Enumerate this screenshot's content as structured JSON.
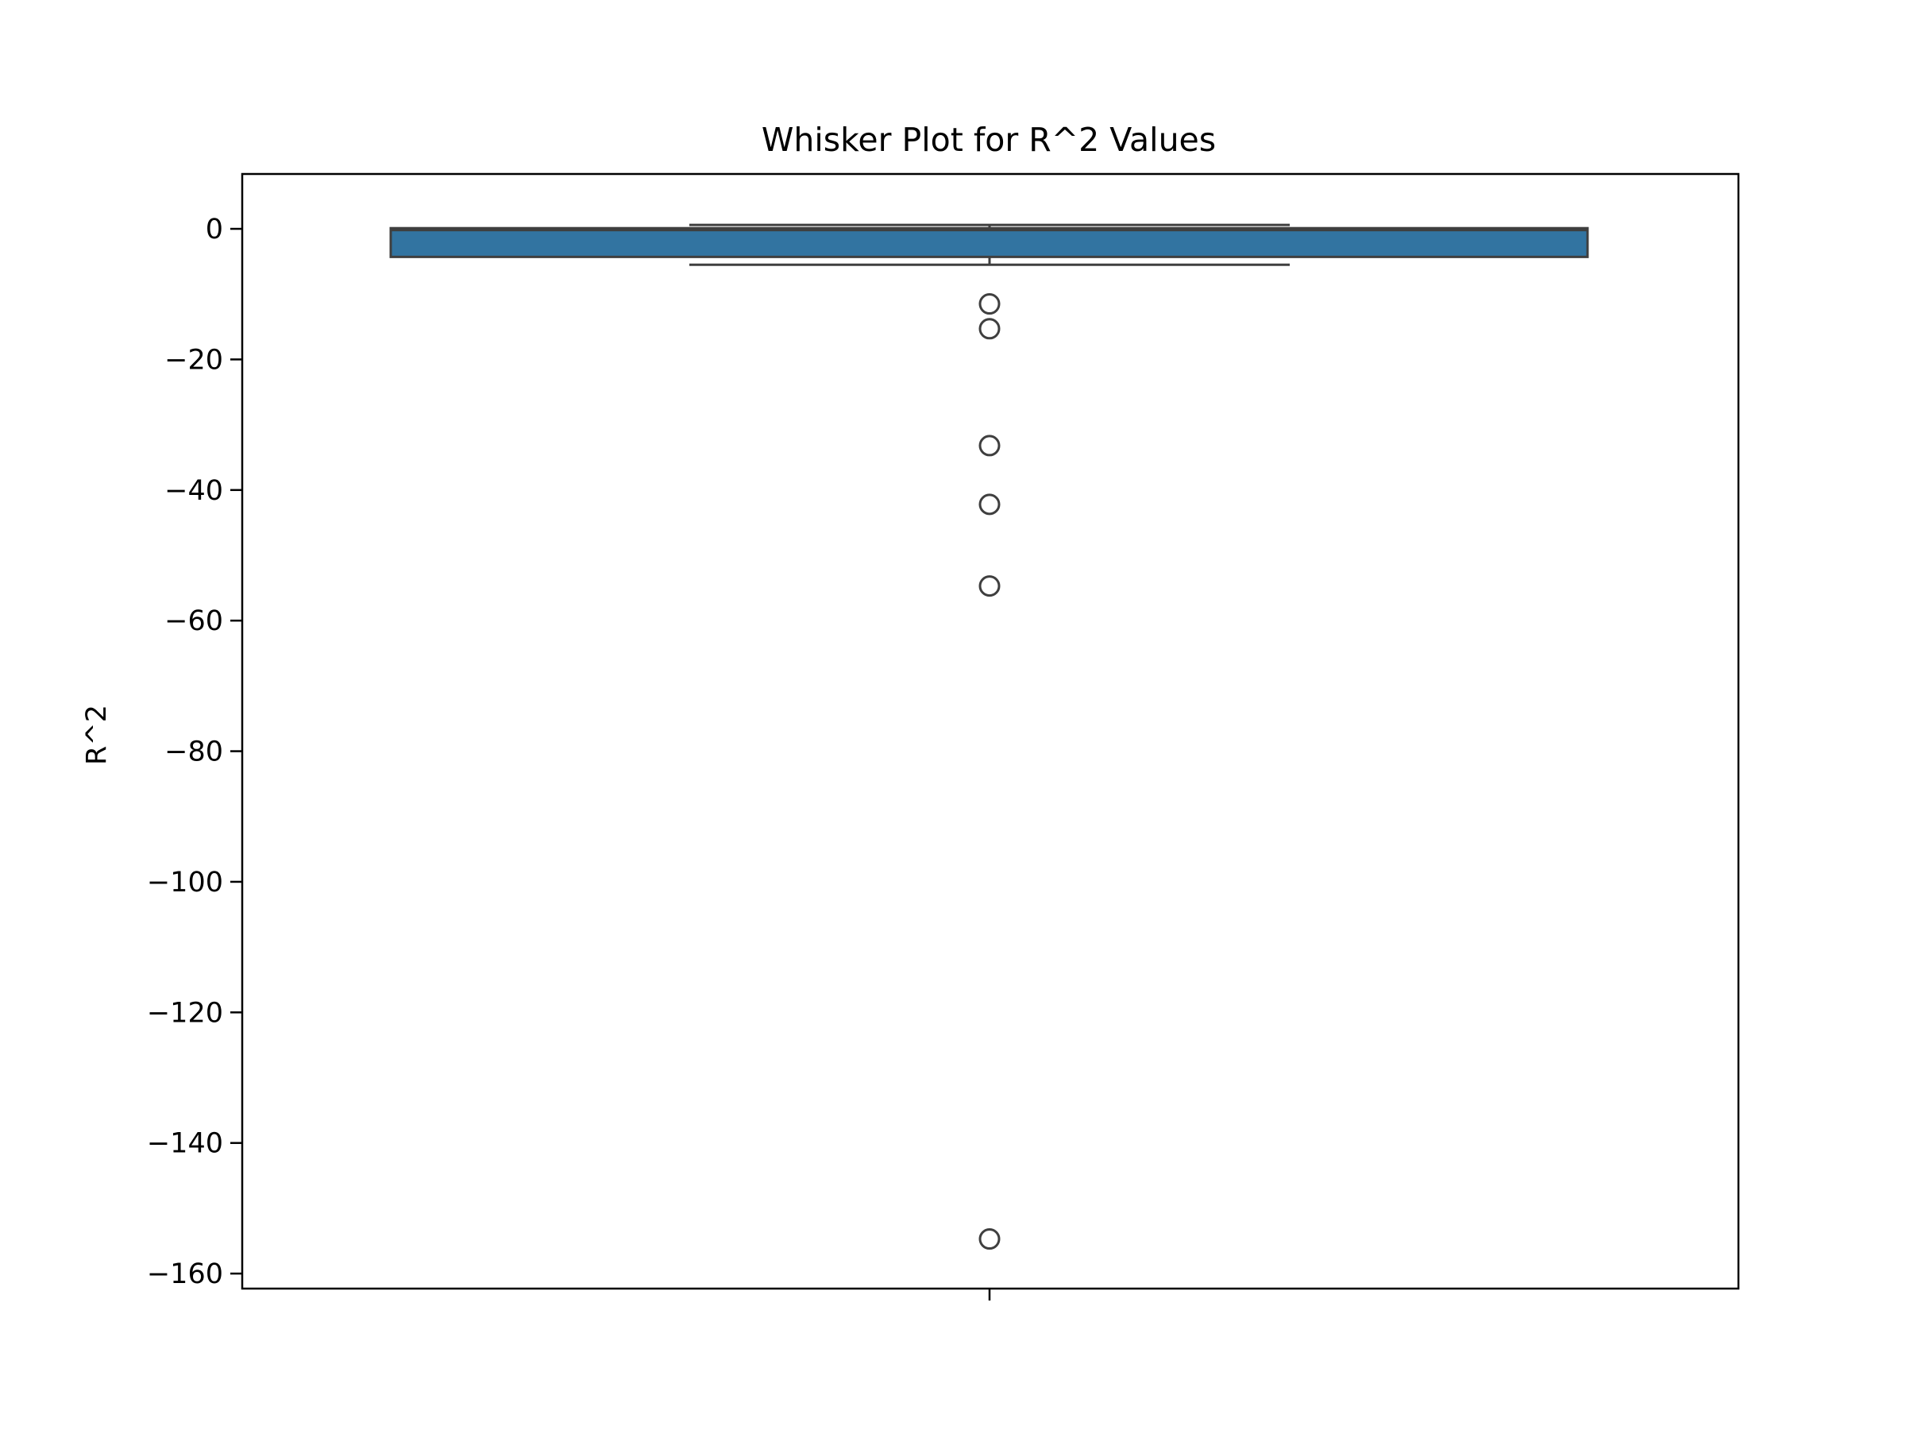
{
  "chart_data": {
    "type": "box",
    "title": "Whisker Plot for R^2 Values",
    "xlabel": "",
    "ylabel": "R^2",
    "ylim": [
      -162.3,
      8.4
    ],
    "yticks": [
      0,
      -20,
      -40,
      -60,
      -80,
      -100,
      -120,
      -140,
      -160
    ],
    "ytick_labels": [
      "0",
      "−20",
      "−40",
      "−60",
      "−80",
      "−100",
      "−120",
      "−140",
      "−160"
    ],
    "grid": false,
    "box": {
      "q1": -4.3,
      "median": -0.2,
      "q3": 0.1,
      "whisker_low": -5.5,
      "whisker_high": 0.6,
      "outliers": [
        -11.5,
        -15.3,
        -33.2,
        -42.2,
        -54.7,
        -154.7
      ]
    },
    "colors": {
      "box_fill": "#3274a1",
      "line": "#3f3f3f"
    }
  }
}
